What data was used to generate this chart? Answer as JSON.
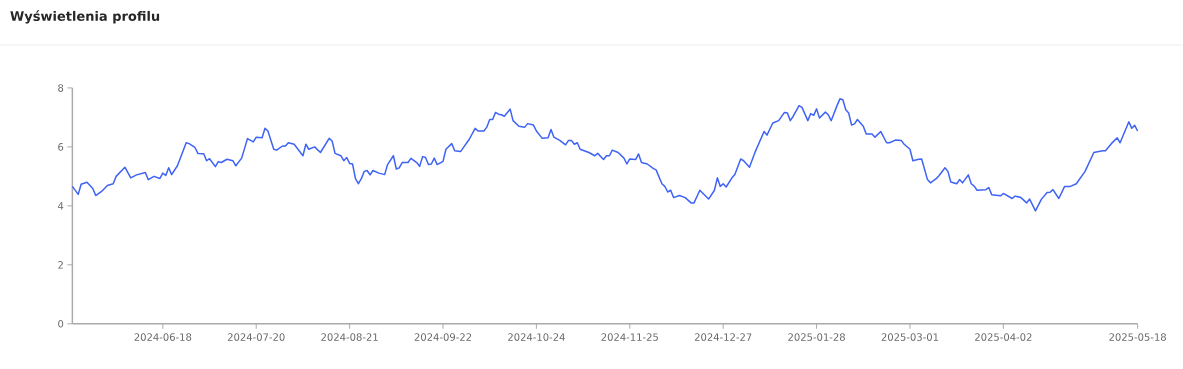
{
  "chart_data": {
    "type": "line",
    "title": "Wyświetlenia profilu",
    "color": "#3f63f5",
    "x": [
      "2024-05-18",
      "2024-05-20",
      "2024-05-21",
      "2024-05-23",
      "2024-05-25",
      "2024-05-26",
      "2024-05-28",
      "2024-05-30",
      "2024-06-01",
      "2024-06-02",
      "2024-06-05",
      "2024-06-07",
      "2024-06-09",
      "2024-06-12",
      "2024-06-13",
      "2024-06-15",
      "2024-06-17",
      "2024-06-18",
      "2024-06-19",
      "2024-06-20",
      "2024-06-21",
      "2024-06-23",
      "2024-06-26",
      "2024-06-27",
      "2024-06-29",
      "2024-06-30",
      "2024-07-02",
      "2024-07-03",
      "2024-07-04",
      "2024-07-06",
      "2024-07-07",
      "2024-07-08",
      "2024-07-10",
      "2024-07-12",
      "2024-07-13",
      "2024-07-15",
      "2024-07-17",
      "2024-07-19",
      "2024-07-20",
      "2024-07-22",
      "2024-07-23",
      "2024-07-24",
      "2024-07-26",
      "2024-07-27",
      "2024-07-29",
      "2024-07-30",
      "2024-07-31",
      "2024-08-02",
      "2024-08-05",
      "2024-08-06",
      "2024-08-07",
      "2024-08-09",
      "2024-08-11",
      "2024-08-14",
      "2024-08-15",
      "2024-08-16",
      "2024-08-18",
      "2024-08-19",
      "2024-08-20",
      "2024-08-21",
      "2024-08-22",
      "2024-08-23",
      "2024-08-24",
      "2024-08-25",
      "2024-08-26",
      "2024-08-27",
      "2024-08-28",
      "2024-08-29",
      "2024-08-31",
      "2024-09-02",
      "2024-09-03",
      "2024-09-05",
      "2024-09-06",
      "2024-09-07",
      "2024-09-08",
      "2024-09-10",
      "2024-09-11",
      "2024-09-13",
      "2024-09-14",
      "2024-09-15",
      "2024-09-16",
      "2024-09-17",
      "2024-09-18",
      "2024-09-19",
      "2024-09-20",
      "2024-09-22",
      "2024-09-23",
      "2024-09-25",
      "2024-09-26",
      "2024-09-28",
      "2024-10-01",
      "2024-10-03",
      "2024-10-04",
      "2024-10-06",
      "2024-10-07",
      "2024-10-08",
      "2024-10-09",
      "2024-10-10",
      "2024-10-11",
      "2024-10-12",
      "2024-10-13",
      "2024-10-15",
      "2024-10-16",
      "2024-10-18",
      "2024-10-20",
      "2024-10-21",
      "2024-10-23",
      "2024-10-24",
      "2024-10-26",
      "2024-10-28",
      "2024-10-29",
      "2024-10-30",
      "2024-11-01",
      "2024-11-03",
      "2024-11-04",
      "2024-11-05",
      "2024-11-06",
      "2024-11-07",
      "2024-11-08",
      "2024-11-11",
      "2024-11-13",
      "2024-11-14",
      "2024-11-16",
      "2024-11-17",
      "2024-11-18",
      "2024-11-19",
      "2024-11-21",
      "2024-11-23",
      "2024-11-24",
      "2024-11-25",
      "2024-11-27",
      "2024-11-28",
      "2024-11-29",
      "2024-12-01",
      "2024-12-03",
      "2024-12-04",
      "2024-12-06",
      "2024-12-07",
      "2024-12-08",
      "2024-12-09",
      "2024-12-10",
      "2024-12-12",
      "2024-12-14",
      "2024-12-16",
      "2024-12-17",
      "2024-12-19",
      "2024-12-22",
      "2024-12-24",
      "2024-12-25",
      "2024-12-26",
      "2024-12-27",
      "2024-12-28",
      "2024-12-30",
      "2024-12-31",
      "2025-01-02",
      "2025-01-03",
      "2025-01-05",
      "2025-01-07",
      "2025-01-10",
      "2025-01-11",
      "2025-01-13",
      "2025-01-15",
      "2025-01-17",
      "2025-01-18",
      "2025-01-19",
      "2025-01-20",
      "2025-01-22",
      "2025-01-23",
      "2025-01-25",
      "2025-01-26",
      "2025-01-27",
      "2025-01-28",
      "2025-01-29",
      "2025-01-31",
      "2025-02-01",
      "2025-02-02",
      "2025-02-04",
      "2025-02-05",
      "2025-02-06",
      "2025-02-07",
      "2025-02-08",
      "2025-02-09",
      "2025-02-10",
      "2025-02-11",
      "2025-02-13",
      "2025-02-14",
      "2025-02-16",
      "2025-02-17",
      "2025-02-19",
      "2025-02-21",
      "2025-02-22",
      "2025-02-24",
      "2025-02-26",
      "2025-02-27",
      "2025-03-01",
      "2025-03-02",
      "2025-03-04",
      "2025-03-05",
      "2025-03-07",
      "2025-03-08",
      "2025-03-10",
      "2025-03-11",
      "2025-03-13",
      "2025-03-14",
      "2025-03-15",
      "2025-03-17",
      "2025-03-18",
      "2025-03-19",
      "2025-03-21",
      "2025-03-22",
      "2025-03-23",
      "2025-03-24",
      "2025-03-27",
      "2025-03-28",
      "2025-03-29",
      "2025-04-01",
      "2025-04-02",
      "2025-04-05",
      "2025-04-06",
      "2025-04-08",
      "2025-04-10",
      "2025-04-11",
      "2025-04-13",
      "2025-04-15",
      "2025-04-17",
      "2025-04-18",
      "2025-04-19",
      "2025-04-21",
      "2025-04-23",
      "2025-04-25",
      "2025-04-27",
      "2025-04-30",
      "2025-05-03",
      "2025-05-06",
      "2025-05-07",
      "2025-05-09",
      "2025-05-11",
      "2025-05-12",
      "2025-05-15",
      "2025-05-16",
      "2025-05-17",
      "2025-05-18"
    ],
    "values": [
      4.66,
      4.39,
      4.73,
      4.8,
      4.59,
      4.35,
      4.49,
      4.69,
      4.75,
      5.0,
      5.31,
      4.95,
      5.05,
      5.13,
      4.89,
      5.0,
      4.93,
      5.11,
      5.03,
      5.29,
      5.06,
      5.36,
      6.14,
      6.11,
      5.98,
      5.78,
      5.77,
      5.53,
      5.6,
      5.33,
      5.5,
      5.47,
      5.58,
      5.53,
      5.36,
      5.62,
      6.28,
      6.17,
      6.33,
      6.31,
      6.63,
      6.54,
      5.92,
      5.89,
      6.03,
      6.03,
      6.14,
      6.09,
      5.7,
      6.09,
      5.92,
      6.0,
      5.81,
      6.29,
      6.2,
      5.78,
      5.7,
      5.53,
      5.64,
      5.44,
      5.42,
      4.92,
      4.75,
      4.92,
      5.17,
      5.2,
      5.05,
      5.2,
      5.11,
      5.06,
      5.4,
      5.7,
      5.25,
      5.29,
      5.47,
      5.47,
      5.61,
      5.47,
      5.34,
      5.67,
      5.64,
      5.4,
      5.42,
      5.62,
      5.4,
      5.51,
      5.92,
      6.11,
      5.87,
      5.84,
      6.26,
      6.63,
      6.54,
      6.54,
      6.67,
      6.93,
      6.93,
      7.17,
      7.11,
      7.09,
      7.04,
      7.28,
      6.89,
      6.7,
      6.67,
      6.79,
      6.74,
      6.54,
      6.29,
      6.31,
      6.59,
      6.33,
      6.22,
      6.07,
      6.22,
      6.22,
      6.09,
      6.14,
      5.92,
      5.81,
      5.7,
      5.78,
      5.57,
      5.7,
      5.7,
      5.89,
      5.81,
      5.62,
      5.42,
      5.59,
      5.57,
      5.76,
      5.47,
      5.42,
      5.27,
      5.22,
      4.75,
      4.66,
      4.47,
      4.53,
      4.28,
      4.35,
      4.28,
      4.1,
      4.1,
      4.53,
      4.23,
      4.53,
      4.95,
      4.66,
      4.75,
      4.64,
      4.95,
      5.06,
      5.59,
      5.53,
      5.31,
      5.84,
      6.52,
      6.4,
      6.81,
      6.89,
      7.17,
      7.15,
      6.89,
      7.04,
      7.4,
      7.34,
      6.89,
      7.13,
      7.07,
      7.29,
      6.98,
      7.18,
      7.09,
      6.89,
      7.4,
      7.63,
      7.6,
      7.26,
      7.15,
      6.74,
      6.78,
      6.93,
      6.7,
      6.44,
      6.44,
      6.33,
      6.52,
      6.14,
      6.14,
      6.23,
      6.22,
      6.09,
      5.92,
      5.53,
      5.58,
      5.59,
      4.89,
      4.78,
      4.92,
      5.03,
      5.29,
      5.17,
      4.81,
      4.75,
      4.89,
      4.78,
      5.05,
      4.75,
      4.67,
      4.53,
      4.55,
      4.62,
      4.38,
      4.34,
      4.42,
      4.25,
      4.33,
      4.28,
      4.1,
      4.23,
      3.83,
      4.22,
      4.45,
      4.46,
      4.55,
      4.25,
      4.66,
      4.66,
      4.75,
      5.17,
      5.81,
      5.87,
      5.87,
      6.11,
      6.31,
      6.14,
      6.85,
      6.63,
      6.73,
      6.54
    ],
    "xlim": [
      "2024-05-18",
      "2025-05-18"
    ],
    "xticks": [
      "2024-06-18",
      "2024-07-20",
      "2024-08-21",
      "2024-09-22",
      "2024-10-24",
      "2024-11-25",
      "2024-12-27",
      "2025-01-28",
      "2025-03-01",
      "2025-04-02",
      "2025-05-18"
    ],
    "ylim": [
      0,
      8
    ],
    "yticks": [
      0,
      2,
      4,
      6,
      8
    ]
  }
}
